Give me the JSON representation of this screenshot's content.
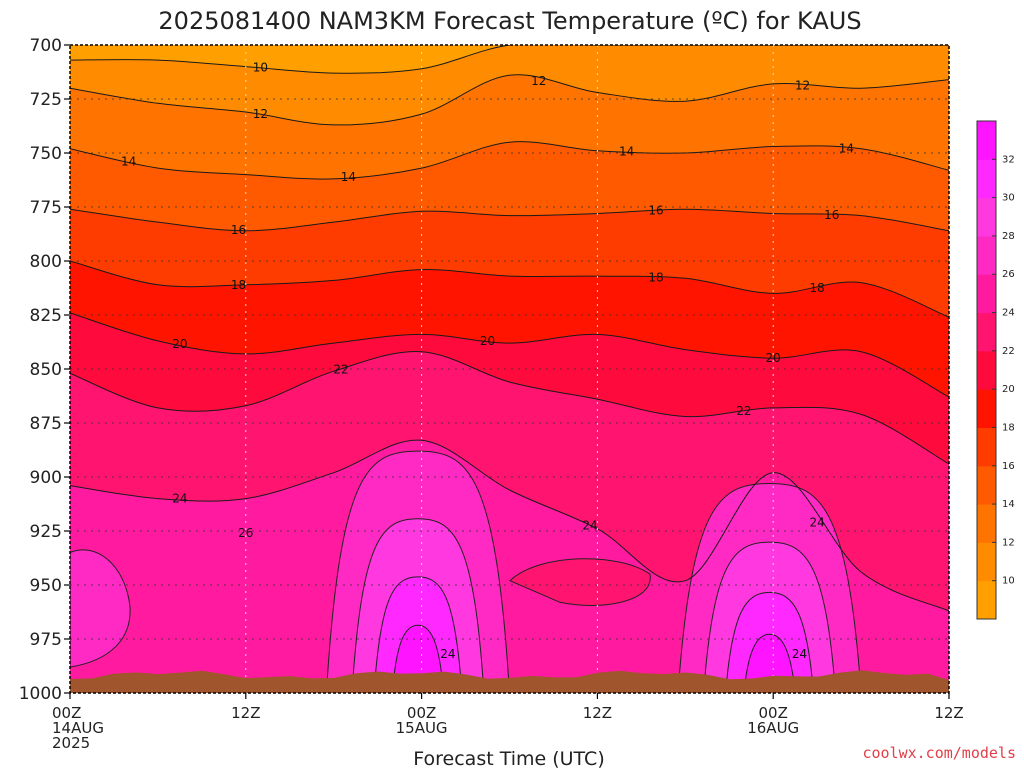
{
  "chart_data": {
    "type": "heatmap",
    "title": "2025081400 NAM3KM Forecast Temperature (ºC) for KAUS",
    "xlabel": "Forecast Time (UTC)",
    "ylabel": "",
    "x_range_hours": [
      0,
      60
    ],
    "ylim": [
      1000,
      700
    ],
    "y_ticks": [
      700,
      725,
      750,
      775,
      800,
      825,
      850,
      875,
      900,
      925,
      950,
      975,
      1000
    ],
    "x_ticks": [
      {
        "hour": 0,
        "lines": [
          "00Z",
          "14AUG",
          "2025"
        ]
      },
      {
        "hour": 12,
        "lines": [
          "12Z"
        ]
      },
      {
        "hour": 24,
        "lines": [
          "00Z",
          "15AUG"
        ]
      },
      {
        "hour": 36,
        "lines": [
          "12Z"
        ]
      },
      {
        "hour": 48,
        "lines": [
          "00Z",
          "16AUG"
        ]
      },
      {
        "hour": 60,
        "lines": [
          "12Z"
        ]
      }
    ],
    "grid": true,
    "colorbar": {
      "levels": [
        8,
        10,
        12,
        14,
        16,
        18,
        20,
        22,
        24,
        26,
        28,
        30,
        32,
        34
      ],
      "tick_labels": [
        "10",
        "12",
        "14",
        "16",
        "18",
        "20",
        "22",
        "24",
        "26",
        "28",
        "30",
        "32"
      ],
      "colors": [
        "#ffa000",
        "#ff8c00",
        "#ff7400",
        "#ff5a00",
        "#ff3c00",
        "#ff1400",
        "#ff0a3c",
        "#ff1470",
        "#ff1aa0",
        "#ff2ac4",
        "#ff38e0",
        "#ff28ff",
        "#ff14ff"
      ],
      "placement": "right"
    },
    "hours": [
      0,
      6,
      12,
      18,
      24,
      30,
      36,
      42,
      48,
      54,
      60
    ],
    "contours": [
      {
        "level": 10,
        "label": "10",
        "pressure": [
          707,
          707,
          710,
          713,
          711,
          700,
          700,
          700,
          700,
          700,
          700
        ]
      },
      {
        "level": 12,
        "label": "12",
        "pressure": [
          720,
          727,
          731,
          737,
          732,
          714,
          722,
          726,
          718,
          720,
          716
        ]
      },
      {
        "level": 14,
        "label": "14",
        "pressure": [
          748,
          757,
          760,
          762,
          757,
          745,
          749,
          750,
          747,
          748,
          758
        ]
      },
      {
        "level": 16,
        "label": "16",
        "pressure": [
          776,
          782,
          786,
          782,
          777,
          779,
          778,
          776,
          778,
          779,
          786
        ]
      },
      {
        "level": 18,
        "label": "18",
        "pressure": [
          800,
          811,
          811,
          809,
          804,
          807,
          807,
          808,
          815,
          810,
          826
        ]
      },
      {
        "level": 20,
        "label": "20",
        "pressure": [
          824,
          837,
          843,
          838,
          834,
          838,
          834,
          841,
          845,
          842,
          863
        ]
      },
      {
        "level": 22,
        "label": "22",
        "pressure": [
          852,
          868,
          867,
          851,
          842,
          856,
          864,
          872,
          868,
          871,
          894
        ]
      },
      {
        "level": 24,
        "label": "24",
        "pressure": [
          904,
          910,
          910,
          898,
          883,
          906,
          924,
          948,
          898,
          944,
          962
        ]
      }
    ],
    "features": [
      {
        "label": "24",
        "description": "warm boundary layer dome",
        "hour_range": [
          17.5,
          30
        ],
        "peak_pressure": 888
      },
      {
        "label": "24",
        "description": "warm boundary layer dome",
        "hour_range": [
          41.5,
          54
        ],
        "peak_pressure": 903
      },
      {
        "label": "26",
        "description": "pocket",
        "hour": 12,
        "pressure": 926
      }
    ],
    "series": []
  },
  "credit": "coolwx.com/models"
}
